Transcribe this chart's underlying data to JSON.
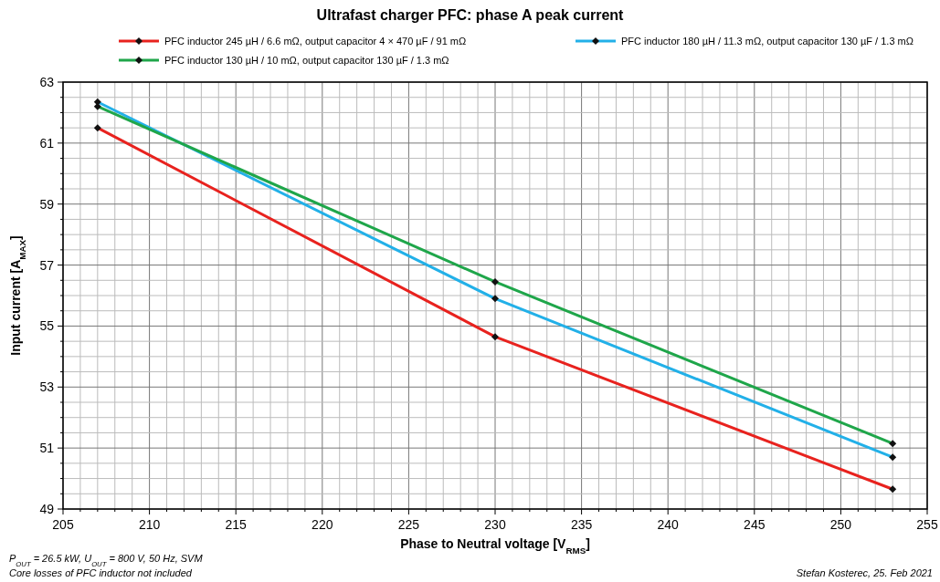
{
  "chart_data": {
    "type": "line",
    "title": "Ultrafast charger PFC: phase A peak current",
    "xlabel": "Phase to Neutral voltage [V$_{RMS}$]",
    "ylabel": "Input current [A$_{MAX}$]",
    "x": [
      207,
      230,
      253
    ],
    "series": [
      {
        "name": "PFC inductor 245 µH / 6.6 mΩ, output capacitor 4 × 470 µF / 91 mΩ",
        "color": "#e8221e",
        "values": [
          61.5,
          54.65,
          49.65
        ]
      },
      {
        "name": "PFC inductor 180 µH / 11.3 mΩ, output capacitor 130 µF / 1.3 mΩ",
        "color": "#22b0e8",
        "values": [
          62.35,
          55.9,
          50.7
        ]
      },
      {
        "name": "PFC inductor 130 µH / 10 mΩ, output capacitor 130 µF / 1.3 mΩ",
        "color": "#1fa64a",
        "values": [
          62.2,
          56.45,
          51.15
        ]
      }
    ],
    "xlim": [
      205,
      255
    ],
    "xticks": [
      205,
      {
        "value": 206,
        "label": null
      },
      {
        "value": 207,
        "label": null
      },
      {
        "value": 208,
        "label": null
      },
      {
        "value": 209,
        "label": null
      },
      210,
      {
        "value": 211,
        "label": null
      },
      {
        "value": 212,
        "label": null
      },
      {
        "value": 213,
        "label": null
      },
      {
        "value": 214,
        "label": null
      },
      215,
      {
        "value": 216,
        "label": null
      },
      {
        "value": 217,
        "label": null
      },
      {
        "value": 218,
        "label": null
      },
      {
        "value": 219,
        "label": null
      },
      220,
      {
        "value": 221,
        "label": null
      },
      {
        "value": 222,
        "label": null
      },
      {
        "value": 223,
        "label": null
      },
      {
        "value": 224,
        "label": null
      },
      225,
      {
        "value": 226,
        "label": null
      },
      {
        "value": 227,
        "label": null
      },
      {
        "value": 228,
        "label": null
      },
      {
        "value": 229,
        "label": null
      },
      230,
      {
        "value": 231,
        "label": null
      },
      {
        "value": 232,
        "label": null
      },
      {
        "value": 233,
        "label": null
      },
      {
        "value": 234,
        "label": null
      },
      235,
      {
        "value": 236,
        "label": null
      },
      {
        "value": 237,
        "label": null
      },
      {
        "value": 238,
        "label": null
      },
      {
        "value": 239,
        "label": null
      },
      240,
      {
        "value": 241,
        "label": null
      },
      {
        "value": 242,
        "label": null
      },
      {
        "value": 243,
        "label": null
      },
      {
        "value": 244,
        "label": null
      },
      245,
      {
        "value": 246,
        "label": null
      },
      {
        "value": 247,
        "label": null
      },
      {
        "value": 248,
        "label": null
      },
      {
        "value": 249,
        "label": null
      },
      250,
      {
        "value": 251,
        "label": null
      },
      {
        "value": 252,
        "label": null
      },
      {
        "value": 253,
        "label": null
      },
      {
        "value": 254,
        "label": null
      },
      255
    ],
    "ylim": [
      49,
      63
    ],
    "yticks": [
      49,
      {
        "value": 49.5,
        "label": null
      },
      {
        "value": 50,
        "label": null
      },
      {
        "value": 50.5,
        "label": null
      },
      51,
      {
        "value": 51.5,
        "label": null
      },
      {
        "value": 52,
        "label": null
      },
      {
        "value": 52.5,
        "label": null
      },
      53,
      {
        "value": 53.5,
        "label": null
      },
      {
        "value": 54,
        "label": null
      },
      {
        "value": 54.5,
        "label": null
      },
      55,
      {
        "value": 55.5,
        "label": null
      },
      {
        "value": 56,
        "label": null
      },
      {
        "value": 56.5,
        "label": null
      },
      57,
      {
        "value": 57.5,
        "label": null
      },
      {
        "value": 58,
        "label": null
      },
      {
        "value": 58.5,
        "label": null
      },
      59,
      {
        "value": 59.5,
        "label": null
      },
      {
        "value": 60,
        "label": null
      },
      {
        "value": 60.5,
        "label": null
      },
      61,
      {
        "value": 61.5,
        "label": null
      },
      {
        "value": 62,
        "label": null
      },
      {
        "value": 62.5,
        "label": null
      },
      63
    ],
    "grid": true,
    "legend": "top",
    "marker": "diamond",
    "line_style": "solid",
    "annotations": [
      "P$_{OUT}$ = 26.5 kW, U$_{OUT}$ = 800 V, 50 Hz, SVM",
      "Core losses of PFC inductor not included",
      "Stefan Kosterec, 25. Feb 2021"
    ]
  }
}
